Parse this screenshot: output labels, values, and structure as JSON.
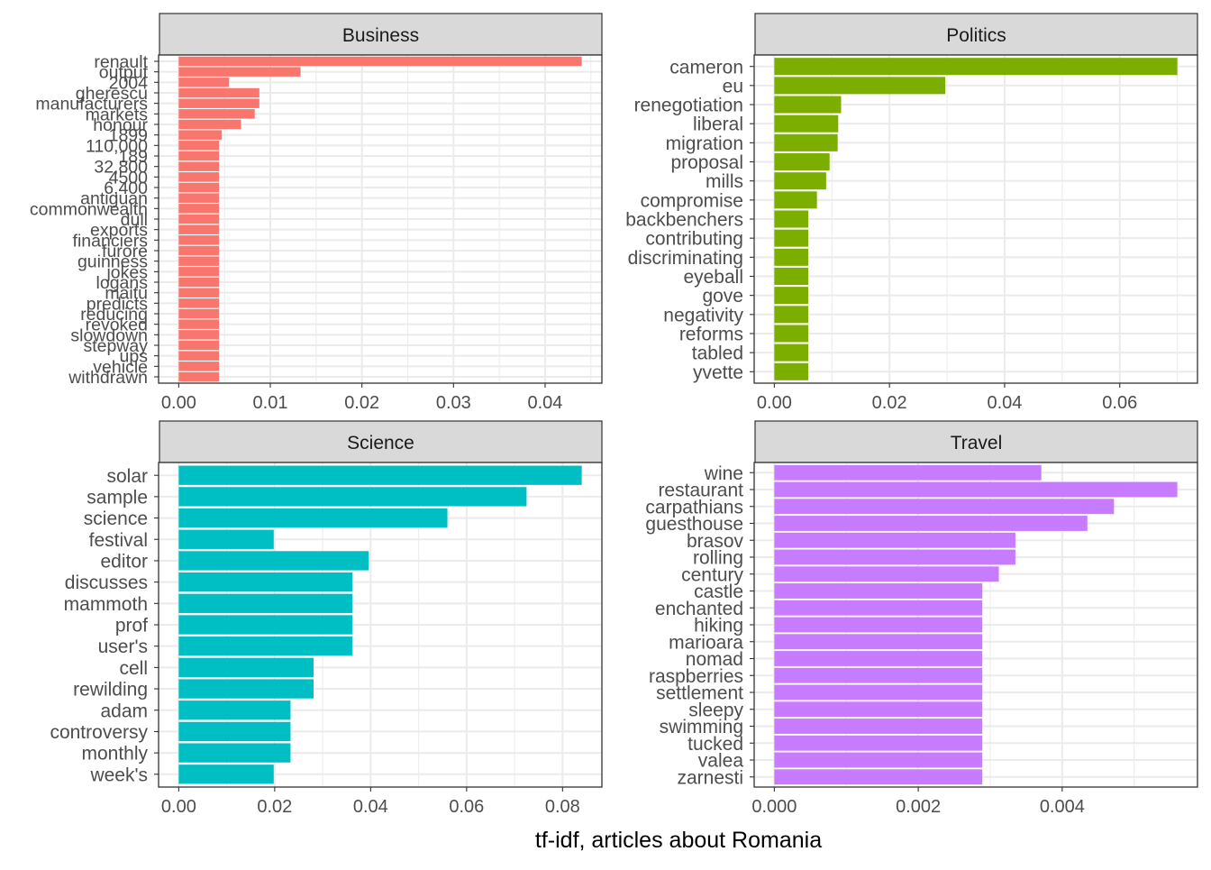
{
  "chart_data": {
    "type": "bar",
    "orientation": "horizontal",
    "xlabel": "tf-idf, articles about Romania",
    "grid": true,
    "facets": [
      {
        "title": "Business",
        "color": "#F8766D",
        "xlim": [
          0,
          0.044
        ],
        "xticks": [
          0.0,
          0.01,
          0.02,
          0.03,
          0.04
        ],
        "xtick_labels": [
          "0.00",
          "0.01",
          "0.02",
          "0.03",
          "0.04"
        ],
        "categories": [
          "renault",
          "output",
          "2004",
          "gherescu",
          "manufacturers",
          "markets",
          "honour",
          "1899",
          "110,000",
          "189",
          "32,800",
          "4500",
          "6,400",
          "antiguan",
          "commonwealth",
          "dull",
          "exports",
          "financiers",
          "furore",
          "guinness",
          "jokes",
          "logans",
          "maitu",
          "predicts",
          "reducing",
          "revoked",
          "slowdown",
          "stepway",
          "ups",
          "vehicle",
          "withdrawn"
        ],
        "values": [
          0.044,
          0.0133,
          0.0055,
          0.0088,
          0.0088,
          0.0083,
          0.0068,
          0.0047,
          0.0044,
          0.0044,
          0.0044,
          0.0044,
          0.0044,
          0.0044,
          0.0044,
          0.0044,
          0.0044,
          0.0044,
          0.0044,
          0.0044,
          0.0044,
          0.0044,
          0.0044,
          0.0044,
          0.0044,
          0.0044,
          0.0044,
          0.0044,
          0.0044,
          0.0044,
          0.0044
        ]
      },
      {
        "title": "Politics",
        "color": "#7CAE00",
        "xlim": [
          0,
          0.07
        ],
        "xticks": [
          0.0,
          0.02,
          0.04,
          0.06
        ],
        "xtick_labels": [
          "0.00",
          "0.02",
          "0.04",
          "0.06"
        ],
        "categories": [
          "cameron",
          "eu",
          "renegotiation",
          "liberal",
          "migration",
          "proposal",
          "mills",
          "compromise",
          "backbenchers",
          "contributing",
          "discriminating",
          "eyeball",
          "gove",
          "negativity",
          "reforms",
          "tabled",
          "yvette"
        ],
        "values": [
          0.07,
          0.0297,
          0.0116,
          0.0111,
          0.011,
          0.0096,
          0.009,
          0.0074,
          0.0059,
          0.0059,
          0.0059,
          0.0059,
          0.0059,
          0.0059,
          0.0059,
          0.0059,
          0.0059
        ]
      },
      {
        "title": "Science",
        "color": "#00BFC4",
        "xlim": [
          0,
          0.084
        ],
        "xticks": [
          0.0,
          0.02,
          0.04,
          0.06,
          0.08
        ],
        "xtick_labels": [
          "0.00",
          "0.02",
          "0.04",
          "0.06",
          "0.08"
        ],
        "categories": [
          "solar",
          "sample",
          "science",
          "festival",
          "editor",
          "discusses",
          "mammoth",
          "prof",
          "user's",
          "cell",
          "rewilding",
          "adam",
          "controversy",
          "monthly",
          "week's"
        ],
        "values": [
          0.084,
          0.0725,
          0.056,
          0.0198,
          0.0396,
          0.0362,
          0.0362,
          0.0362,
          0.0362,
          0.0281,
          0.0281,
          0.0233,
          0.0233,
          0.0233,
          0.0198
        ]
      },
      {
        "title": "Travel",
        "color": "#C77CFF",
        "xlim": [
          0,
          0.0056
        ],
        "xticks": [
          0.0,
          0.002,
          0.004
        ],
        "xtick_labels": [
          "0.000",
          "0.002",
          "0.004"
        ],
        "categories": [
          "wine",
          "restaurant",
          "carpathians",
          "guesthouse",
          "brasov",
          "rolling",
          "century",
          "castle",
          "enchanted",
          "hiking",
          "marioara",
          "nomad",
          "raspberries",
          "settlement",
          "sleepy",
          "swimming",
          "tucked",
          "valea",
          "zarnesti"
        ],
        "values": [
          0.00371,
          0.0056,
          0.00472,
          0.00435,
          0.00335,
          0.00335,
          0.00312,
          0.00289,
          0.00289,
          0.00289,
          0.00289,
          0.00289,
          0.00289,
          0.00289,
          0.00289,
          0.00289,
          0.00289,
          0.00289,
          0.00289
        ]
      }
    ]
  }
}
